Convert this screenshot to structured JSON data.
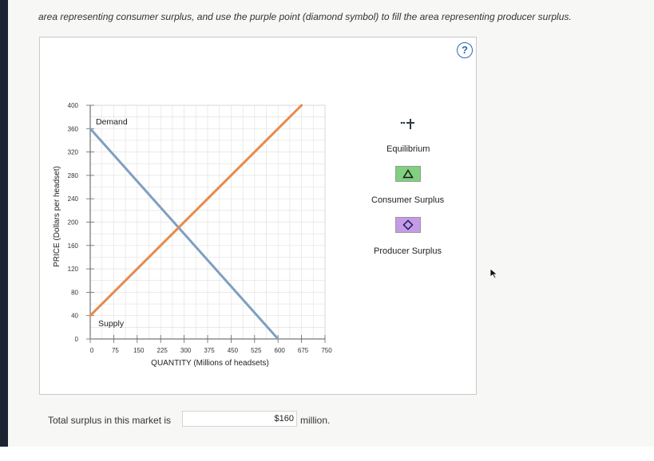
{
  "instruction": "area representing consumer surplus, and use the purple point (diamond symbol) to fill the area representing producer surplus.",
  "help_glyph": "?",
  "chart_data": {
    "type": "line",
    "ylabel": "PRICE (Dollars per headset)",
    "xlabel": "QUANTITY (Millions of headsets)",
    "xlim": [
      0,
      750
    ],
    "ylim": [
      0,
      400
    ],
    "x_ticks": [
      "0",
      "75",
      "150",
      "225",
      "300",
      "375",
      "450",
      "525",
      "600",
      "675",
      "750"
    ],
    "y_ticks": [
      "400",
      "360",
      "320",
      "280",
      "240",
      "200",
      "160",
      "120",
      "80",
      "40",
      "0"
    ],
    "x_tick_values": [
      0,
      75,
      150,
      225,
      300,
      375,
      450,
      525,
      600,
      675,
      750
    ],
    "y_tick_values": [
      400,
      360,
      320,
      280,
      240,
      200,
      160,
      120,
      80,
      40,
      0
    ],
    "series": [
      {
        "name": "Demand",
        "color": "#7f9fbf",
        "points": [
          [
            0,
            360
          ],
          [
            600,
            0
          ]
        ]
      },
      {
        "name": "Supply",
        "color": "#e68a4a",
        "points": [
          [
            0,
            40
          ],
          [
            675,
            400
          ]
        ]
      }
    ]
  },
  "tools": {
    "equilibrium_label": "Equilibrium",
    "consumer_surplus_label": "Consumer Surplus",
    "producer_surplus_label": "Producer Surplus",
    "consumer_color": "#7fd07f",
    "producer_color": "#c59ae6"
  },
  "question": {
    "prefix": "Total surplus in this market is",
    "value": "$160",
    "unit": "million."
  }
}
